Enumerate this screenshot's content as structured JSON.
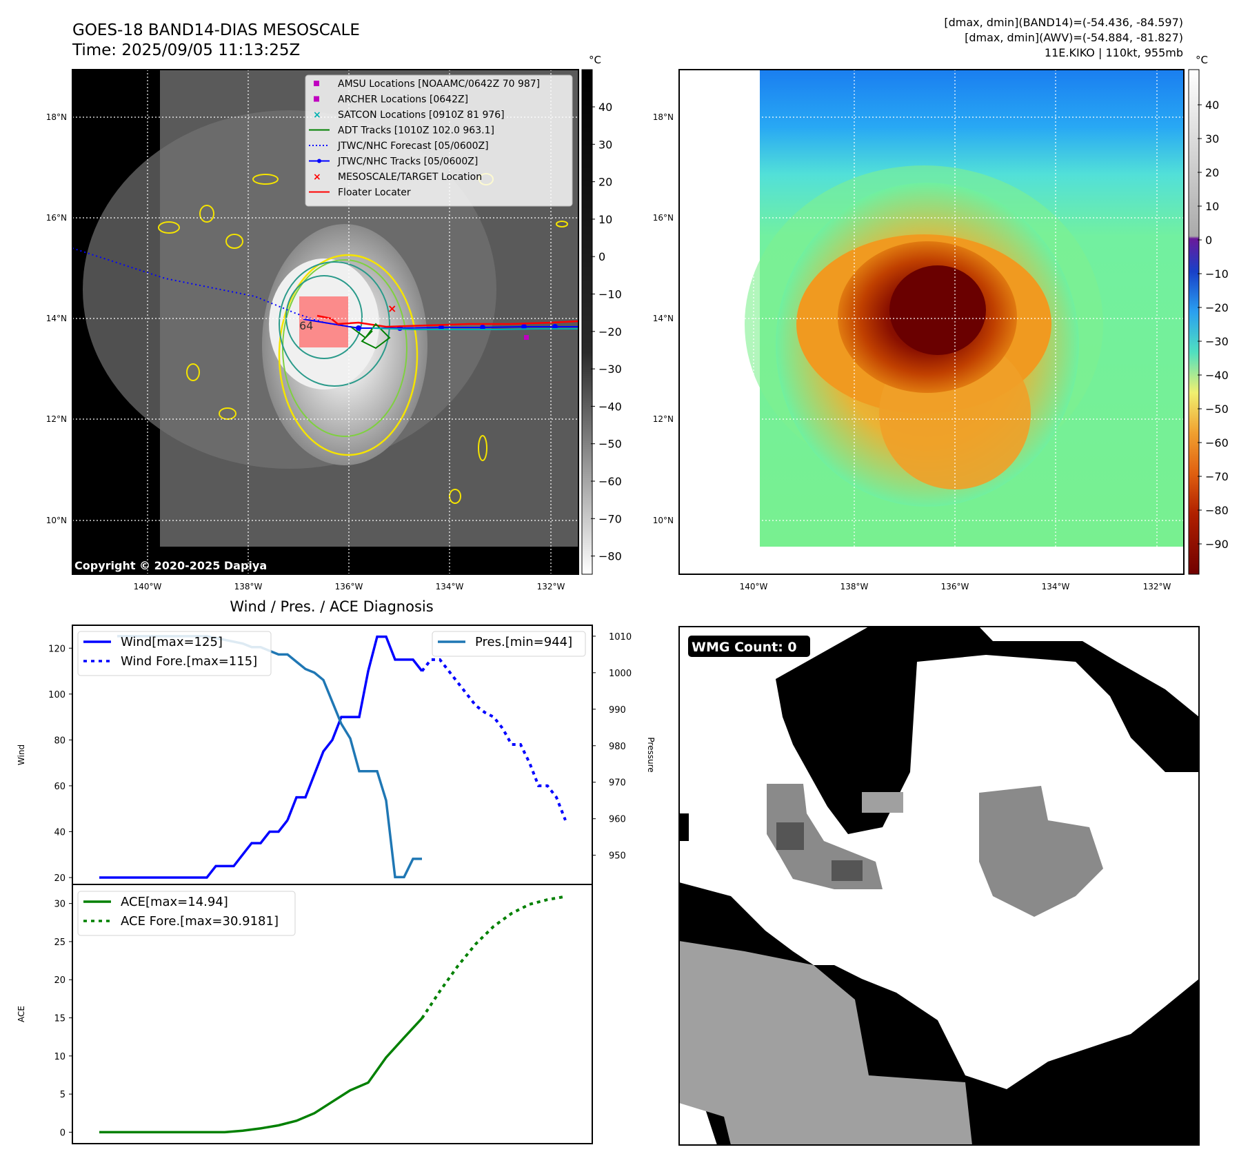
{
  "header": {
    "title_line1": "GOES-18 BAND14-DIAS MESOSCALE",
    "title_line2": "Time: 2025/09/05 11:13:25Z",
    "stats_line1": "[dmax, dmin](BAND14)=(-54.436, -84.597)",
    "stats_line2": "[dmax, dmin](AWV)=(-54.884, -81.827)",
    "stats_line3": "11E.KIKO | 110kt, 955mb",
    "colorbar_unit": "°C",
    "copyright": "Copyright © 2020-2025 Dapiya",
    "wmg_label": "WMG Count: 0",
    "diagnosis_title": "Wind / Pres. / ACE Diagnosis"
  },
  "map_axes": {
    "lat_labels": [
      "18°N",
      "16°N",
      "14°N",
      "12°N",
      "10°N"
    ],
    "lon_labels": [
      "140°W",
      "138°W",
      "136°W",
      "134°W",
      "132°W"
    ],
    "storm_intensity_label": "64"
  },
  "colorbar_left": {
    "ticks": [
      "40",
      "30",
      "20",
      "10",
      "0",
      "−10",
      "−20",
      "−30",
      "−40",
      "−50",
      "−60",
      "−70",
      "−80"
    ]
  },
  "colorbar_right": {
    "ticks": [
      "40",
      "30",
      "20",
      "10",
      "0",
      "−10",
      "−20",
      "−30",
      "−40",
      "−50",
      "−60",
      "−70",
      "−80",
      "−90"
    ]
  },
  "legend_map": [
    {
      "label": "AMSU Locations [NOAAMC/0642Z 70 987]",
      "color": "#c000c0",
      "kind": "square"
    },
    {
      "label": "ARCHER Locations [0642Z]",
      "color": "#c000c0",
      "kind": "square"
    },
    {
      "label": "SATCON Locations [0910Z 81 976]",
      "color": "#00b0b0",
      "kind": "x"
    },
    {
      "label": "ADT Tracks [1010Z 102.0 963.1]",
      "color": "#008000",
      "kind": "line"
    },
    {
      "label": "JTWC/NHC Forecast [05/0600Z]",
      "color": "#0000ff",
      "kind": "dotted"
    },
    {
      "label": "JTWC/NHC Tracks [05/0600Z]",
      "color": "#0000ff",
      "kind": "linedot"
    },
    {
      "label": "MESOSCALE/TARGET Location",
      "color": "#ff0000",
      "kind": "x"
    },
    {
      "label": "Floater Locater",
      "color": "#ff0000",
      "kind": "line"
    }
  ],
  "chart_data": [
    {
      "type": "line",
      "title": "Wind / Pres. / ACE Diagnosis",
      "ylabel": "Wind",
      "y2label": "Pressure",
      "ylim": [
        17,
        130
      ],
      "y2lim": [
        942,
        1013
      ],
      "yticks": [
        "120",
        "100",
        "80",
        "60",
        "40",
        "20"
      ],
      "y2ticks": [
        "1010",
        "1000",
        "990",
        "980",
        "970",
        "960",
        "950"
      ],
      "series": [
        {
          "name": "Wind",
          "legend": "Wind[max=125]",
          "color": "#0000ff",
          "style": "solid",
          "x": [
            0,
            2,
            4,
            6,
            7,
            8,
            9,
            10,
            11,
            12,
            13,
            14,
            15,
            16,
            17,
            18,
            19,
            20,
            21
          ],
          "values": [
            20,
            20,
            20,
            20,
            20,
            20,
            20,
            20,
            20,
            20,
            25,
            25,
            25,
            30,
            35,
            35,
            40,
            40,
            45
          ]
        },
        {
          "name": "Wind (cont.)",
          "legend": "",
          "color": "#0000ff",
          "style": "solid",
          "x": [
            21,
            22,
            23,
            24,
            25,
            26,
            27,
            28,
            29,
            30,
            31,
            32,
            33,
            34
          ],
          "values": [
            45,
            55,
            55,
            65,
            75,
            80,
            90,
            90,
            90,
            110,
            125,
            125,
            115,
            115
          ]
        },
        {
          "name": "Wind (end)",
          "legend": "",
          "color": "#0000ff",
          "style": "solid",
          "x": [
            34,
            35,
            36
          ],
          "values": [
            115,
            115,
            110
          ]
        },
        {
          "name": "Wind Fore.",
          "legend": "Wind Fore.[max=115]",
          "color": "#0000ff",
          "style": "dotted",
          "x": [
            36,
            37,
            38,
            39,
            40,
            41,
            42,
            43,
            44,
            45,
            46,
            47,
            48,
            49,
            50,
            51,
            52
          ],
          "values": [
            110,
            115,
            115,
            110,
            105,
            100,
            95,
            92,
            90,
            85,
            78,
            78,
            70,
            60,
            60,
            55,
            45
          ]
        },
        {
          "name": "Pres.",
          "legend": "Pres.[min=944]",
          "color": "#1f77b4",
          "style": "solid",
          "axis": "right",
          "x": [
            2,
            4,
            6,
            8,
            10,
            12,
            14,
            16,
            17,
            18,
            19,
            20,
            21,
            22,
            23,
            24,
            25,
            26,
            27,
            28,
            29,
            30,
            31,
            32,
            33,
            34,
            35,
            36
          ],
          "values": [
            1010,
            1010,
            1010,
            1010,
            1010,
            1010,
            1009,
            1008,
            1007,
            1007,
            1006,
            1005,
            1005,
            1003,
            1001,
            1000,
            998,
            992,
            986,
            982,
            973,
            973,
            973,
            965,
            944,
            944,
            949,
            949
          ]
        }
      ]
    },
    {
      "type": "line",
      "ylabel": "ACE",
      "ylim": [
        -1.5,
        32.5
      ],
      "yticks": [
        "30",
        "25",
        "20",
        "15",
        "10",
        "5",
        "0"
      ],
      "series": [
        {
          "name": "ACE",
          "legend": "ACE[max=14.94]",
          "color": "#008000",
          "style": "solid",
          "x": [
            0,
            4,
            8,
            12,
            14,
            16,
            18,
            20,
            22,
            24,
            26,
            28,
            30,
            32,
            34,
            36
          ],
          "values": [
            0,
            0,
            0,
            0,
            0,
            0.2,
            0.5,
            0.9,
            1.5,
            2.5,
            4,
            5.5,
            6.5,
            9.8,
            12.4,
            14.94
          ]
        },
        {
          "name": "ACE Fore.",
          "legend": "ACE Fore.[max=30.9181]",
          "color": "#008000",
          "style": "dotted",
          "x": [
            36,
            38,
            40,
            42,
            44,
            46,
            48,
            50,
            52
          ],
          "values": [
            14.94,
            18.5,
            21.8,
            24.7,
            27,
            28.7,
            29.9,
            30.5,
            30.92
          ]
        }
      ]
    }
  ]
}
